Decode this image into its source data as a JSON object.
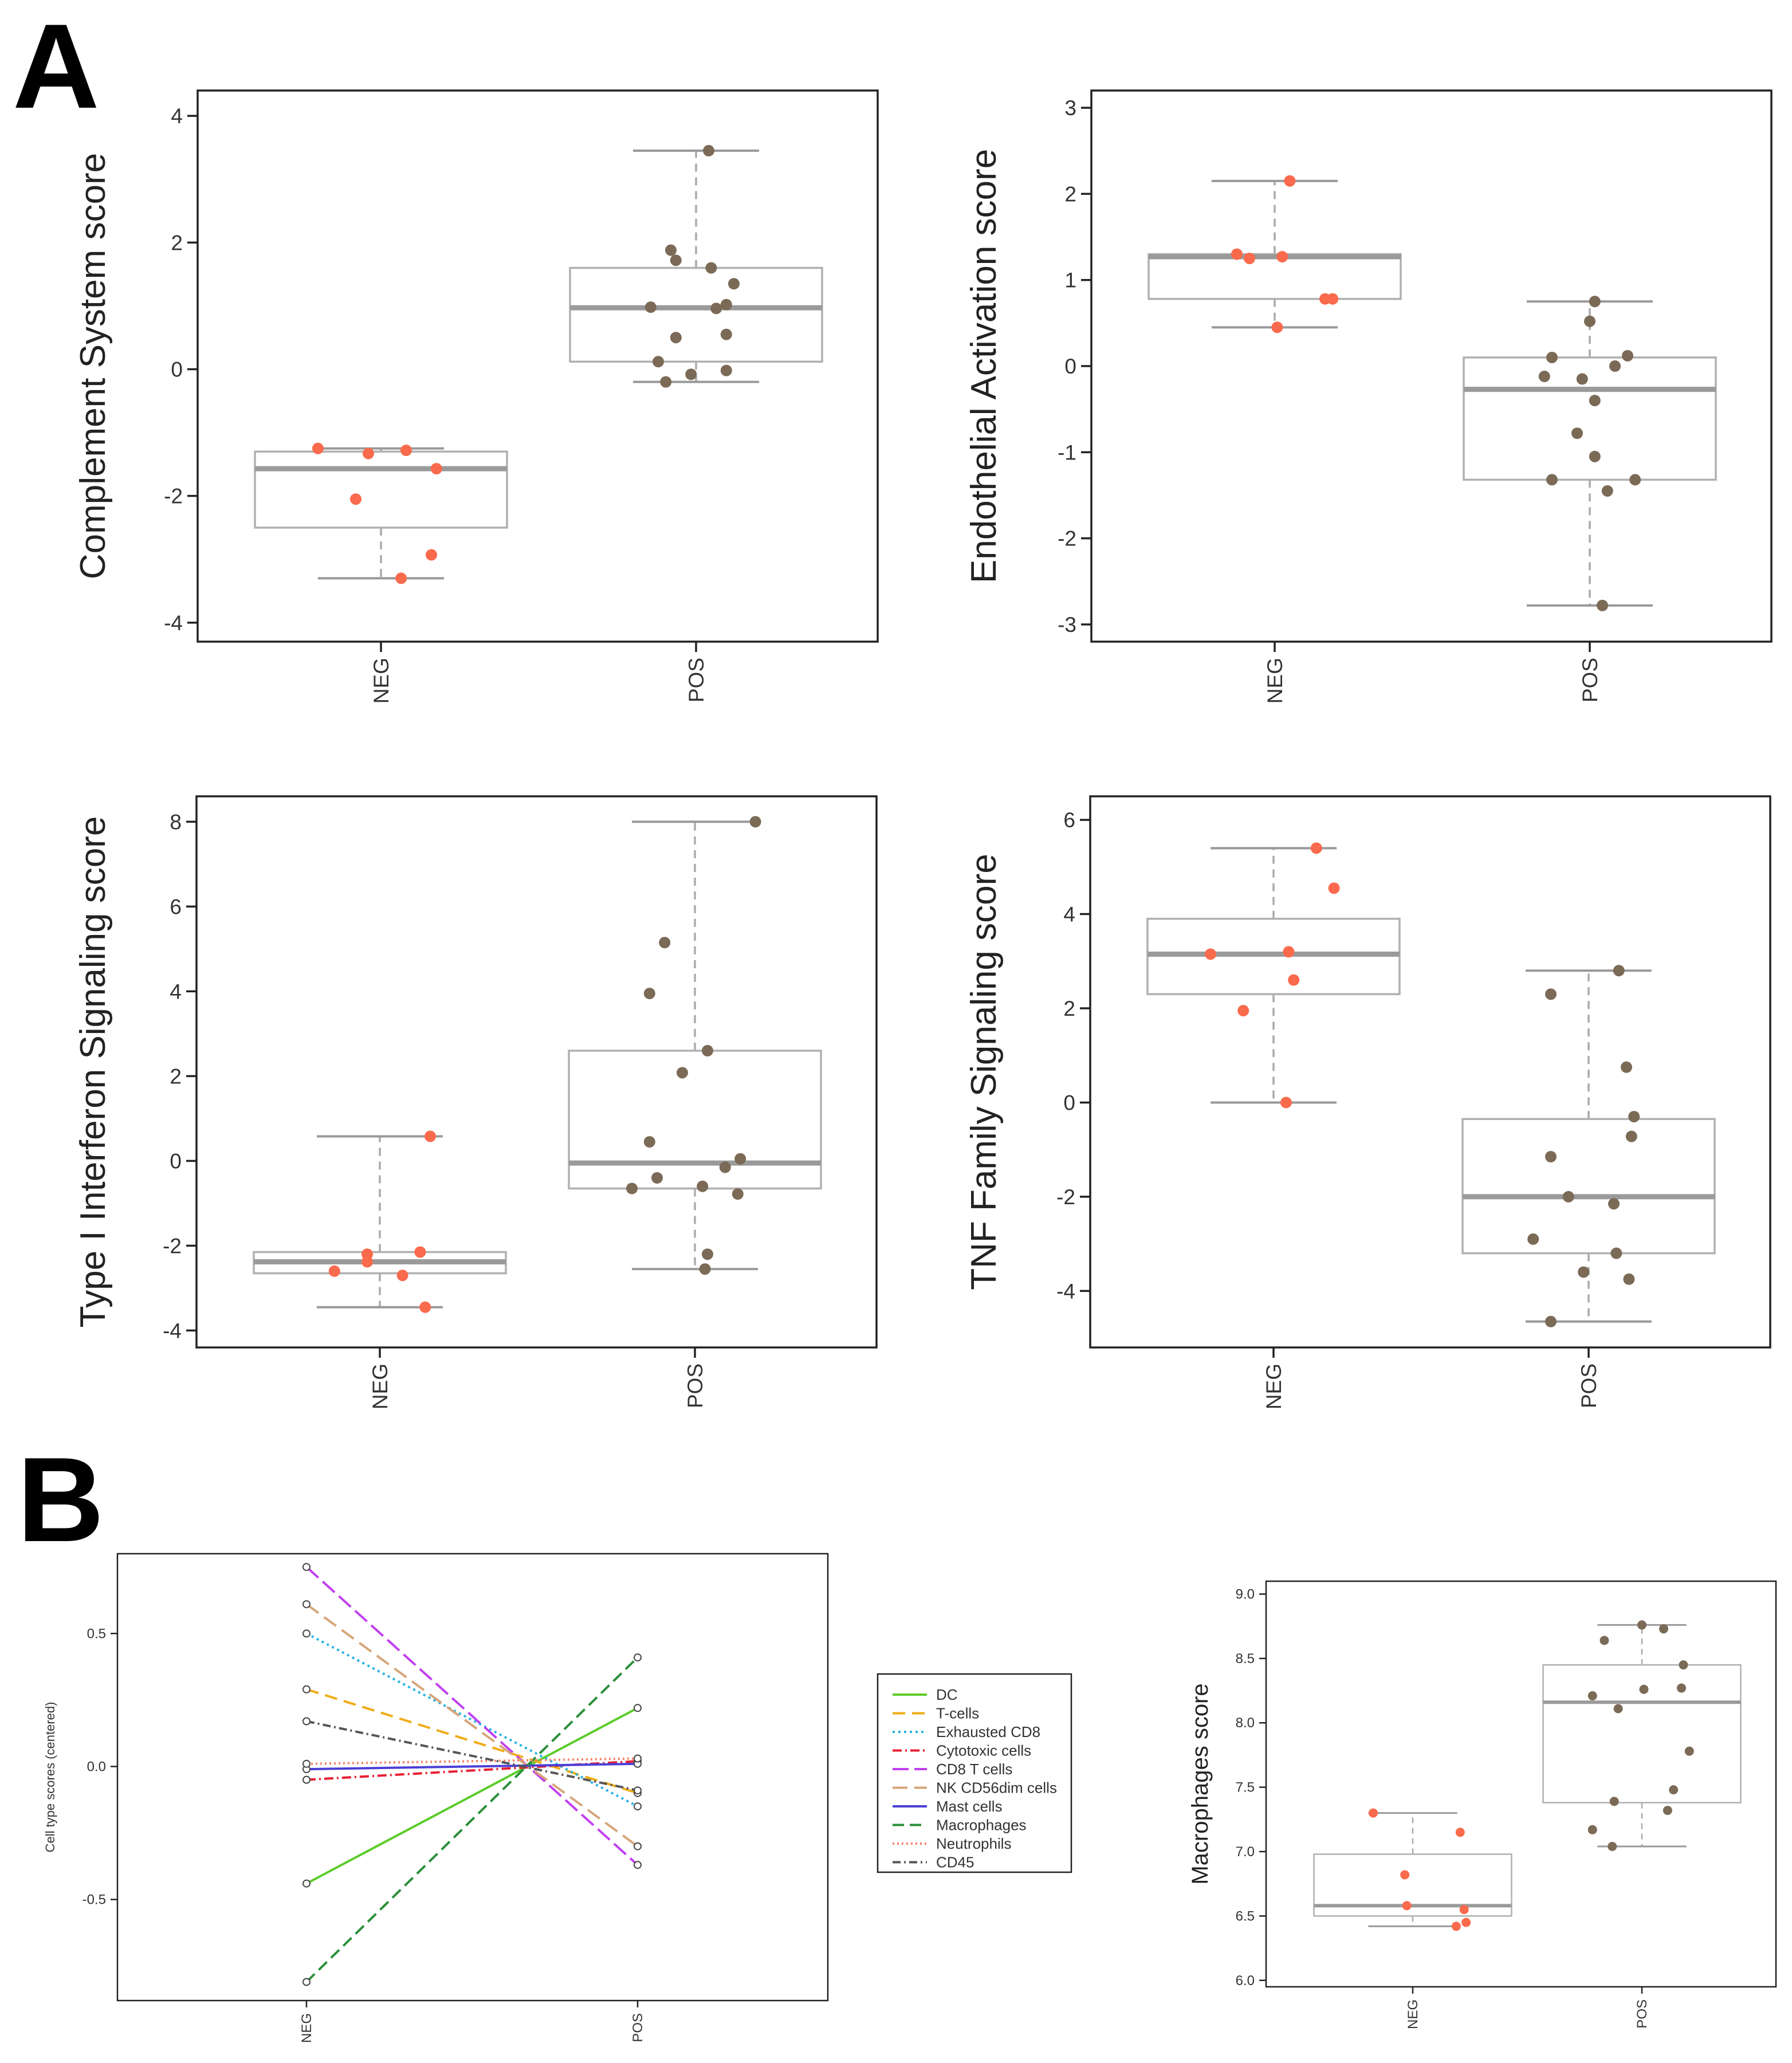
{
  "panels": [
    {
      "label": "A"
    },
    {
      "label": "B"
    }
  ],
  "chart_data": [
    {
      "type": "boxplot",
      "ylabel": "Complement System score",
      "categories": [
        "NEG",
        "POS"
      ],
      "ylim": [
        -4.3,
        4.4
      ],
      "yticks": [
        -4,
        -2,
        0,
        2,
        4
      ],
      "boxes": [
        {
          "category": "NEG",
          "whisker_low": -3.3,
          "q1": -2.5,
          "median": -1.57,
          "q3": -1.3,
          "whisker_high": -1.25,
          "color": "#fa6a4c",
          "points": [
            [
              -0.25,
              -1.25
            ],
            [
              -0.05,
              -1.33
            ],
            [
              0.1,
              -1.28
            ],
            [
              0.22,
              -1.57
            ],
            [
              -0.1,
              -2.05
            ],
            [
              0.2,
              -2.93
            ],
            [
              0.08,
              -3.3
            ]
          ]
        },
        {
          "category": "POS",
          "whisker_low": -0.2,
          "q1": 0.12,
          "median": 0.97,
          "q3": 1.6,
          "whisker_high": 3.45,
          "color": "#7b6a56",
          "points": [
            [
              0.05,
              3.45
            ],
            [
              -0.1,
              1.88
            ],
            [
              -0.08,
              1.72
            ],
            [
              0.06,
              1.6
            ],
            [
              0.15,
              1.35
            ],
            [
              -0.18,
              0.98
            ],
            [
              0.08,
              0.96
            ],
            [
              0.12,
              1.02
            ],
            [
              -0.08,
              0.5
            ],
            [
              0.12,
              0.55
            ],
            [
              -0.15,
              0.12
            ],
            [
              -0.02,
              -0.08
            ],
            [
              0.12,
              -0.02
            ],
            [
              -0.12,
              -0.2
            ]
          ]
        }
      ]
    },
    {
      "type": "boxplot",
      "ylabel": "Endothelial Activation score",
      "categories": [
        "NEG",
        "POS"
      ],
      "ylim": [
        -3.2,
        3.2
      ],
      "yticks": [
        -3,
        -2,
        -1,
        0,
        1,
        2,
        3
      ],
      "boxes": [
        {
          "category": "NEG",
          "whisker_low": 0.45,
          "q1": 0.78,
          "median": 1.27,
          "q3": 1.3,
          "whisker_high": 2.15,
          "color": "#fa6a4c",
          "points": [
            [
              0.06,
              2.15
            ],
            [
              -0.15,
              1.3
            ],
            [
              -0.1,
              1.25
            ],
            [
              0.03,
              1.27
            ],
            [
              0.2,
              0.78
            ],
            [
              0.23,
              0.78
            ],
            [
              0.01,
              0.45
            ]
          ]
        },
        {
          "category": "POS",
          "whisker_low": -2.78,
          "q1": -1.32,
          "median": -0.27,
          "q3": 0.1,
          "whisker_high": 0.75,
          "color": "#7b6a56",
          "points": [
            [
              0.02,
              0.75
            ],
            [
              0.0,
              0.52
            ],
            [
              -0.15,
              0.1
            ],
            [
              0.15,
              0.12
            ],
            [
              0.1,
              0.0
            ],
            [
              -0.18,
              -0.12
            ],
            [
              -0.03,
              -0.15
            ],
            [
              0.02,
              -0.4
            ],
            [
              -0.05,
              -0.78
            ],
            [
              0.02,
              -1.05
            ],
            [
              -0.15,
              -1.32
            ],
            [
              0.18,
              -1.32
            ],
            [
              0.07,
              -1.45
            ],
            [
              0.05,
              -2.78
            ]
          ]
        }
      ]
    },
    {
      "type": "boxplot",
      "ylabel": "Type I Interferon Signaling score",
      "categories": [
        "NEG",
        "POS"
      ],
      "ylim": [
        -4.4,
        8.6
      ],
      "yticks": [
        -4,
        -2,
        0,
        2,
        4,
        6,
        8
      ],
      "boxes": [
        {
          "category": "NEG",
          "whisker_low": -3.45,
          "q1": -2.65,
          "median": -2.38,
          "q3": -2.15,
          "whisker_high": 0.58,
          "color": "#fa6a4c",
          "points": [
            [
              0.2,
              0.58
            ],
            [
              -0.05,
              -2.2
            ],
            [
              0.16,
              -2.15
            ],
            [
              -0.05,
              -2.38
            ],
            [
              -0.18,
              -2.6
            ],
            [
              0.09,
              -2.7
            ],
            [
              0.18,
              -3.45
            ]
          ]
        },
        {
          "category": "POS",
          "whisker_low": -2.55,
          "q1": -0.65,
          "median": -0.05,
          "q3": 2.6,
          "whisker_high": 8.0,
          "color": "#7b6a56",
          "points": [
            [
              0.24,
              8.0
            ],
            [
              -0.12,
              5.15
            ],
            [
              -0.18,
              3.95
            ],
            [
              0.05,
              2.6
            ],
            [
              -0.05,
              2.08
            ],
            [
              -0.18,
              0.45
            ],
            [
              -0.15,
              -0.4
            ],
            [
              -0.25,
              -0.65
            ],
            [
              0.03,
              -0.6
            ],
            [
              0.12,
              -0.15
            ],
            [
              0.18,
              0.05
            ],
            [
              0.17,
              -0.78
            ],
            [
              0.05,
              -2.2
            ],
            [
              0.04,
              -2.55
            ]
          ]
        }
      ]
    },
    {
      "type": "boxplot",
      "ylabel": "TNF Family Signaling score",
      "categories": [
        "NEG",
        "POS"
      ],
      "ylim": [
        -5.2,
        6.5
      ],
      "yticks": [
        -4,
        -2,
        0,
        2,
        4,
        6
      ],
      "boxes": [
        {
          "category": "NEG",
          "whisker_low": 0.0,
          "q1": 2.3,
          "median": 3.15,
          "q3": 3.9,
          "whisker_high": 5.4,
          "color": "#fa6a4c",
          "points": [
            [
              0.17,
              5.4
            ],
            [
              0.24,
              4.55
            ],
            [
              -0.25,
              3.15
            ],
            [
              0.06,
              3.2
            ],
            [
              0.08,
              2.6
            ],
            [
              -0.12,
              1.95
            ],
            [
              0.05,
              0.0
            ]
          ]
        },
        {
          "category": "POS",
          "whisker_low": -4.65,
          "q1": -3.2,
          "median": -2.0,
          "q3": -0.35,
          "whisker_high": 2.8,
          "color": "#7b6a56",
          "points": [
            [
              0.12,
              2.8
            ],
            [
              -0.15,
              2.3
            ],
            [
              0.15,
              0.75
            ],
            [
              0.18,
              -0.3
            ],
            [
              0.17,
              -0.72
            ],
            [
              -0.15,
              -1.15
            ],
            [
              -0.08,
              -2.0
            ],
            [
              0.1,
              -2.15
            ],
            [
              -0.22,
              -2.9
            ],
            [
              0.11,
              -3.2
            ],
            [
              -0.02,
              -3.6
            ],
            [
              0.16,
              -3.75
            ],
            [
              -0.15,
              -4.65
            ]
          ]
        }
      ]
    },
    {
      "type": "line",
      "ylabel": "Cell type scores (centered)",
      "categories": [
        "NEG",
        "POS"
      ],
      "ylim": [
        -0.88,
        0.8
      ],
      "yticks": [
        -0.5,
        0.0,
        0.5
      ],
      "ytick_labels": [
        "-0.5",
        "0.0",
        "0.5"
      ],
      "legend_position": "right",
      "series": [
        {
          "name": "DC",
          "values": [
            -0.44,
            0.22
          ],
          "color": "#5ccc2a",
          "dash": ""
        },
        {
          "name": "T-cells",
          "values": [
            0.29,
            -0.1
          ],
          "color": "#f0ac17",
          "dash": "22 12"
        },
        {
          "name": "Exhausted CD8",
          "values": [
            0.5,
            -0.15
          ],
          "color": "#27b4e3",
          "dash": "4 6"
        },
        {
          "name": "Cytotoxic cells",
          "values": [
            -0.05,
            0.02
          ],
          "color": "#e81f31",
          "dash": "16 6 3 6"
        },
        {
          "name": "CD8 T cells",
          "values": [
            0.75,
            -0.37
          ],
          "color": "#c140f0",
          "dash": "28 10"
        },
        {
          "name": "NK CD56dim cells",
          "values": [
            0.61,
            -0.3
          ],
          "color": "#d6a579",
          "dash": "26 12"
        },
        {
          "name": "Mast cells",
          "values": [
            -0.01,
            0.01
          ],
          "color": "#4a3fd6",
          "dash": ""
        },
        {
          "name": "Macrophages",
          "values": [
            -0.81,
            0.41
          ],
          "color": "#2a8f3a",
          "dash": "20 10"
        },
        {
          "name": "Neutrophils",
          "values": [
            0.01,
            0.03
          ],
          "color": "#f5836a",
          "dash": "3 5"
        },
        {
          "name": "CD45",
          "values": [
            0.17,
            -0.09
          ],
          "color": "#555555",
          "dash": "14 6 3 6"
        }
      ]
    },
    {
      "type": "boxplot",
      "ylabel": "Macrophages score",
      "categories": [
        "NEG",
        "POS"
      ],
      "ylim": [
        5.95,
        9.1
      ],
      "yticks": [
        6.0,
        6.5,
        7.0,
        7.5,
        8.0,
        8.5,
        9.0
      ],
      "ytick_labels": [
        "6.0",
        "6.5",
        "7.0",
        "7.5",
        "8.0",
        "8.5",
        "9.0"
      ],
      "boxes": [
        {
          "category": "NEG",
          "whisker_low": 6.42,
          "q1": 6.5,
          "median": 6.58,
          "q3": 6.98,
          "whisker_high": 7.3,
          "color": "#fa6a4c",
          "points": [
            [
              -0.2,
              7.3
            ],
            [
              0.24,
              7.15
            ],
            [
              -0.04,
              6.82
            ],
            [
              -0.03,
              6.58
            ],
            [
              0.26,
              6.55
            ],
            [
              0.22,
              6.42
            ],
            [
              0.27,
              6.45
            ]
          ]
        },
        {
          "category": "POS",
          "whisker_low": 7.04,
          "q1": 7.38,
          "median": 8.16,
          "q3": 8.45,
          "whisker_high": 8.76,
          "color": "#7b6a56",
          "points": [
            [
              0.0,
              8.76
            ],
            [
              0.11,
              8.73
            ],
            [
              -0.19,
              8.64
            ],
            [
              0.21,
              8.45
            ],
            [
              -0.25,
              8.21
            ],
            [
              0.01,
              8.26
            ],
            [
              0.2,
              8.27
            ],
            [
              -0.12,
              8.11
            ],
            [
              0.24,
              7.78
            ],
            [
              -0.14,
              7.39
            ],
            [
              0.16,
              7.48
            ],
            [
              0.13,
              7.32
            ],
            [
              -0.25,
              7.17
            ],
            [
              -0.15,
              7.04
            ]
          ]
        }
      ]
    }
  ]
}
